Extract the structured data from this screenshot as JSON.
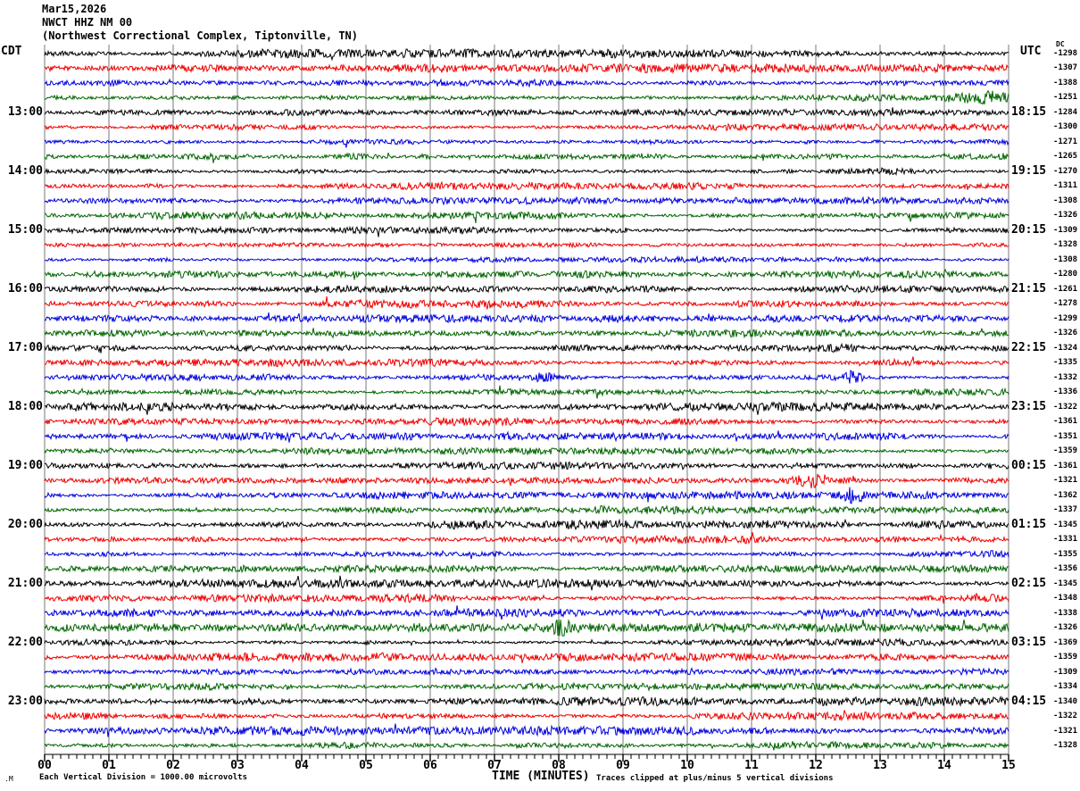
{
  "title": {
    "date": "Mar15,2026",
    "station": "NWCT HHZ NM 00",
    "location": "(Northwest Correctional Complex, Tiptonville, TN)"
  },
  "axes": {
    "left_header": "CDT",
    "right_header": "UTC",
    "dc_header": "DC",
    "x_title": "TIME (MINUTES)"
  },
  "footer": {
    "watermark": ".M",
    "left": "Each Vertical Division = 1000.00 microvolts",
    "right": "Traces clipped at plus/minus 5 vertical divisions"
  },
  "chart_data": {
    "type": "line",
    "subtype": "helicorder-seismogram",
    "x_label": "TIME (MINUTES)",
    "x_range_minutes": [
      0,
      15
    ],
    "x_ticks": [
      "00",
      "01",
      "02",
      "03",
      "04",
      "05",
      "06",
      "07",
      "08",
      "09",
      "10",
      "11",
      "12",
      "13",
      "14",
      "15"
    ],
    "minor_ticks_per_minute": 8,
    "grid": true,
    "grid_color": "#787878",
    "trace_color_cycle": {
      "black": "#000000",
      "red": "#ee0000",
      "blue": "#0000dd",
      "green": "#006400"
    },
    "rows_per_hour": 4,
    "minutes_per_row": 15,
    "rows": [
      {
        "color": "black",
        "dc": "-1298",
        "cdt": "",
        "utc": ""
      },
      {
        "color": "red",
        "dc": "-1307",
        "cdt": "",
        "utc": ""
      },
      {
        "color": "blue",
        "dc": "-1388",
        "cdt": "",
        "utc": ""
      },
      {
        "color": "green",
        "dc": "-1251",
        "cdt": "",
        "utc": ""
      },
      {
        "color": "black",
        "dc": "-1284",
        "cdt": "13:00",
        "utc": "18:15"
      },
      {
        "color": "red",
        "dc": "-1300",
        "cdt": "",
        "utc": ""
      },
      {
        "color": "blue",
        "dc": "-1271",
        "cdt": "",
        "utc": ""
      },
      {
        "color": "green",
        "dc": "-1265",
        "cdt": "",
        "utc": ""
      },
      {
        "color": "black",
        "dc": "-1270",
        "cdt": "14:00",
        "utc": "19:15"
      },
      {
        "color": "red",
        "dc": "-1311",
        "cdt": "",
        "utc": ""
      },
      {
        "color": "blue",
        "dc": "-1308",
        "cdt": "",
        "utc": ""
      },
      {
        "color": "green",
        "dc": "-1326",
        "cdt": "",
        "utc": ""
      },
      {
        "color": "black",
        "dc": "-1309",
        "cdt": "15:00",
        "utc": "20:15"
      },
      {
        "color": "red",
        "dc": "-1328",
        "cdt": "",
        "utc": ""
      },
      {
        "color": "blue",
        "dc": "-1308",
        "cdt": "",
        "utc": ""
      },
      {
        "color": "green",
        "dc": "-1280",
        "cdt": "",
        "utc": ""
      },
      {
        "color": "black",
        "dc": "-1261",
        "cdt": "16:00",
        "utc": "21:15"
      },
      {
        "color": "red",
        "dc": "-1278",
        "cdt": "",
        "utc": ""
      },
      {
        "color": "blue",
        "dc": "-1299",
        "cdt": "",
        "utc": ""
      },
      {
        "color": "green",
        "dc": "-1326",
        "cdt": "",
        "utc": ""
      },
      {
        "color": "black",
        "dc": "-1324",
        "cdt": "17:00",
        "utc": "22:15"
      },
      {
        "color": "red",
        "dc": "-1335",
        "cdt": "",
        "utc": ""
      },
      {
        "color": "blue",
        "dc": "-1332",
        "cdt": "",
        "utc": ""
      },
      {
        "color": "green",
        "dc": "-1336",
        "cdt": "",
        "utc": ""
      },
      {
        "color": "black",
        "dc": "-1322",
        "cdt": "18:00",
        "utc": "23:15"
      },
      {
        "color": "red",
        "dc": "-1361",
        "cdt": "",
        "utc": ""
      },
      {
        "color": "blue",
        "dc": "-1351",
        "cdt": "",
        "utc": ""
      },
      {
        "color": "green",
        "dc": "-1359",
        "cdt": "",
        "utc": ""
      },
      {
        "color": "black",
        "dc": "-1361",
        "cdt": "19:00",
        "utc": "00:15"
      },
      {
        "color": "red",
        "dc": "-1321",
        "cdt": "",
        "utc": ""
      },
      {
        "color": "blue",
        "dc": "-1362",
        "cdt": "",
        "utc": ""
      },
      {
        "color": "green",
        "dc": "-1337",
        "cdt": "",
        "utc": ""
      },
      {
        "color": "black",
        "dc": "-1345",
        "cdt": "20:00",
        "utc": "01:15"
      },
      {
        "color": "red",
        "dc": "-1331",
        "cdt": "",
        "utc": ""
      },
      {
        "color": "blue",
        "dc": "-1355",
        "cdt": "",
        "utc": ""
      },
      {
        "color": "green",
        "dc": "-1356",
        "cdt": "",
        "utc": ""
      },
      {
        "color": "black",
        "dc": "-1345",
        "cdt": "21:00",
        "utc": "02:15"
      },
      {
        "color": "red",
        "dc": "-1348",
        "cdt": "",
        "utc": ""
      },
      {
        "color": "blue",
        "dc": "-1338",
        "cdt": "",
        "utc": ""
      },
      {
        "color": "green",
        "dc": "-1326",
        "cdt": "",
        "utc": ""
      },
      {
        "color": "black",
        "dc": "-1369",
        "cdt": "22:00",
        "utc": "03:15"
      },
      {
        "color": "red",
        "dc": "-1359",
        "cdt": "",
        "utc": ""
      },
      {
        "color": "blue",
        "dc": "-1309",
        "cdt": "",
        "utc": ""
      },
      {
        "color": "green",
        "dc": "-1334",
        "cdt": "",
        "utc": ""
      },
      {
        "color": "black",
        "dc": "-1340",
        "cdt": "23:00",
        "utc": "04:15"
      },
      {
        "color": "red",
        "dc": "-1322",
        "cdt": "",
        "utc": ""
      },
      {
        "color": "blue",
        "dc": "-1321",
        "cdt": "",
        "utc": ""
      },
      {
        "color": "green",
        "dc": "-1328",
        "cdt": "",
        "utc": ""
      }
    ],
    "events": [
      {
        "row": 3,
        "minute": 14.6,
        "width": 0.45,
        "amp": 2.0
      },
      {
        "row": 22,
        "minute": 7.75,
        "width": 0.12,
        "amp": 2.6
      },
      {
        "row": 22,
        "minute": 12.6,
        "width": 0.15,
        "amp": 2.0
      },
      {
        "row": 29,
        "minute": 12.05,
        "width": 0.35,
        "amp": 3.0
      },
      {
        "row": 30,
        "minute": 12.6,
        "width": 0.15,
        "amp": 2.4
      },
      {
        "row": 39,
        "minute": 8.05,
        "width": 0.1,
        "amp": 3.2
      }
    ]
  }
}
